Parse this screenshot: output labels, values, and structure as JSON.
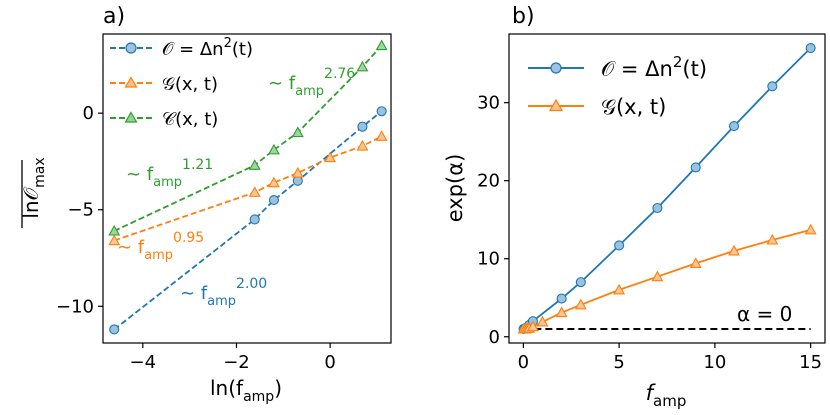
{
  "colors": {
    "blue": "#1f77b4",
    "orange": "#ff7f0e",
    "green": "#2ca02c",
    "black": "#000000"
  },
  "chart_data": [
    {
      "panel_label": "a)",
      "type": "line",
      "xlabel_main": "ln(f",
      "xlabel_sub": "amp",
      "xlabel_close": ")",
      "ylabel_main": "ln",
      "ylabel_symbol": "𝒪",
      "ylabel_sub": "max",
      "xlim": [
        -4.85,
        1.3
      ],
      "ylim": [
        -11.9,
        4.1
      ],
      "xticks": [
        -4,
        -2,
        0
      ],
      "xtick_labels": [
        "−4",
        "−2",
        "0"
      ],
      "yticks": [
        -10,
        -5,
        0
      ],
      "ytick_labels": [
        "−10",
        "−5",
        "0"
      ],
      "series": [
        {
          "name": "𝒪 = Δn²(t)",
          "color": "#1f77b4",
          "marker": "circle",
          "dashed": true,
          "x": [
            -4.61,
            -1.61,
            -1.2,
            -0.69,
            0.69,
            1.1
          ],
          "y": [
            -11.2,
            -5.5,
            -4.5,
            -3.5,
            -0.7,
            0.1
          ]
        },
        {
          "name": "𝒢(x, t)",
          "color": "#ff7f0e",
          "marker": "triangle",
          "dashed": true,
          "x": [
            -4.61,
            -1.61,
            -1.2,
            -0.69,
            0.0,
            0.69,
            1.1
          ],
          "y": [
            -6.6,
            -4.1,
            -3.6,
            -3.1,
            -2.3,
            -1.7,
            -1.2
          ]
        },
        {
          "name": "𝒞(x, t)",
          "color": "#2ca02c",
          "marker": "triangle",
          "dashed": true,
          "x": [
            -4.61,
            -1.61,
            -1.2,
            -0.69,
            0.69,
            1.1
          ],
          "y": [
            -6.1,
            -2.7,
            -1.9,
            -1.0,
            2.4,
            3.5
          ]
        }
      ],
      "legend": [
        {
          "label_main": "𝒪 = Δn",
          "label_sup": "2",
          "label_tail": "(t)"
        },
        {
          "label_main": "𝒢(x, t)",
          "label_sup": "",
          "label_tail": ""
        },
        {
          "label_main": "𝒞(x, t)",
          "label_sup": "",
          "label_tail": ""
        }
      ],
      "annotations": [
        {
          "prefix": "∼ f",
          "sub": "amp",
          "sup": "2.76",
          "color": "#2ca02c"
        },
        {
          "prefix": "∼ f",
          "sub": "amp",
          "sup": "1.21",
          "color": "#2ca02c"
        },
        {
          "prefix": "∼ f",
          "sub": "amp",
          "sup": "0.95",
          "color": "#ff7f0e"
        },
        {
          "prefix": "∼ f",
          "sub": "amp",
          "sup": "2.00",
          "color": "#1f77b4"
        }
      ]
    },
    {
      "panel_label": "b)",
      "type": "line",
      "xlabel_main": "f",
      "xlabel_sub": "amp",
      "ylabel": "exp(α)",
      "xlim": [
        -0.75,
        15.75
      ],
      "ylim": [
        -0.8,
        38.8
      ],
      "xticks": [
        0,
        5,
        10,
        15
      ],
      "xtick_labels": [
        "0",
        "5",
        "10",
        "15"
      ],
      "yticks": [
        0,
        10,
        20,
        30
      ],
      "ytick_labels": [
        "0",
        "10",
        "20",
        "30"
      ],
      "series": [
        {
          "name": "𝒪 = Δn²(t)",
          "color": "#1f77b4",
          "marker": "circle",
          "dashed": false,
          "x": [
            0.01,
            0.1,
            0.2,
            0.3,
            0.5,
            2,
            3,
            5,
            7,
            9,
            11,
            13,
            15
          ],
          "y": [
            1.0,
            1.1,
            1.2,
            1.5,
            2.0,
            4.9,
            7.0,
            11.7,
            16.5,
            21.7,
            27.0,
            32.1,
            37.0
          ]
        },
        {
          "name": "𝒢(x, t)",
          "color": "#ff7f0e",
          "marker": "triangle",
          "dashed": false,
          "x": [
            0.01,
            0.1,
            0.2,
            0.3,
            0.5,
            1,
            2,
            3,
            5,
            7,
            9,
            11,
            13,
            15
          ],
          "y": [
            1.0,
            1.0,
            1.05,
            1.1,
            1.3,
            1.9,
            3.1,
            4.1,
            6.0,
            7.7,
            9.4,
            11.0,
            12.4,
            13.7
          ]
        }
      ],
      "reference_line": {
        "y": 1.0,
        "x_from": 0.0,
        "x_to": 15.0,
        "label": "α = 0"
      },
      "legend": [
        {
          "label_main": "𝒪 = Δn",
          "label_sup": "2",
          "label_tail": "(t)"
        },
        {
          "label_main": "𝒢(x, t)",
          "label_sup": "",
          "label_tail": ""
        }
      ]
    }
  ]
}
